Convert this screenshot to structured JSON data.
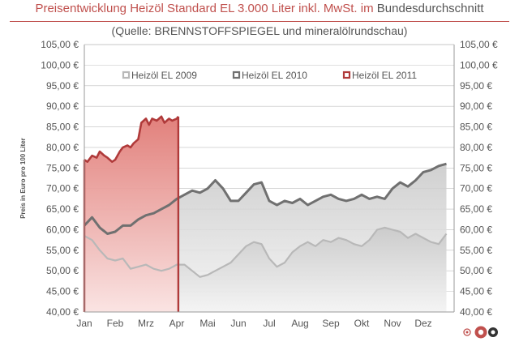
{
  "header": {
    "title_main": "Preisentwicklung Heizöl Standard EL 3.000 Liter inkl. MwSt. im",
    "title_tail": "Bundesdurchschnitt",
    "subtitle": "(Quelle: BRENNSTOFFSPIEGEL  und mineralölrundschau)"
  },
  "colors": {
    "accent": "#c0504d",
    "series_2011": "#b03a3a",
    "series_2010": "#707070",
    "series_2009": "#b8b8b8",
    "grid": "#bfbfbf",
    "text": "#555555"
  },
  "chart_data": {
    "type": "area",
    "ylabel": "Preis in Euro pro 100 Liter",
    "ylim": [
      40,
      105
    ],
    "y_ticks": [
      "40,00 €",
      "45,00 €",
      "50,00 €",
      "55,00 €",
      "60,00 €",
      "65,00 €",
      "70,00 €",
      "75,00 €",
      "80,00 €",
      "85,00 €",
      "90,00 €",
      "95,00 €",
      "100,00 €",
      "105,00 €"
    ],
    "y_tick_values": [
      40,
      45,
      50,
      55,
      60,
      65,
      70,
      75,
      80,
      85,
      90,
      95,
      100,
      105
    ],
    "categories": [
      "Jan",
      "Feb",
      "Mrz",
      "Apr",
      "Mai",
      "Jun",
      "Jul",
      "Aug",
      "Sep",
      "Okt",
      "Nov",
      "Dez"
    ],
    "legend_position": "top",
    "grid": true,
    "series": [
      {
        "name": "Heizöl EL 2009",
        "x": [
          0,
          0.25,
          0.5,
          0.75,
          1,
          1.25,
          1.5,
          1.75,
          2,
          2.25,
          2.5,
          2.75,
          3,
          3.25,
          3.5,
          3.75,
          4,
          4.25,
          4.5,
          4.75,
          5,
          5.25,
          5.5,
          5.75,
          6,
          6.25,
          6.5,
          6.75,
          7,
          7.25,
          7.5,
          7.75,
          8,
          8.25,
          8.5,
          8.75,
          9,
          9.25,
          9.5,
          9.75,
          10,
          10.25,
          10.5,
          10.75,
          11,
          11.25,
          11.5,
          11.75
        ],
        "values": [
          58.5,
          57.5,
          55,
          53,
          52.5,
          53,
          50.5,
          51,
          51.5,
          50.5,
          50,
          50.5,
          51.5,
          51.5,
          50,
          48.5,
          49,
          50,
          51,
          52,
          54,
          56,
          57,
          56.5,
          53,
          51,
          52,
          54.5,
          56,
          57,
          56,
          57.5,
          57,
          58,
          57.5,
          56.5,
          56,
          57.5,
          60,
          60.5,
          60,
          59.5,
          58,
          59,
          58,
          57,
          56.5,
          59
        ]
      },
      {
        "name": "Heizöl EL 2010",
        "x": [
          0,
          0.25,
          0.5,
          0.75,
          1,
          1.25,
          1.5,
          1.75,
          2,
          2.25,
          2.5,
          2.75,
          3,
          3.25,
          3.5,
          3.75,
          4,
          4.25,
          4.5,
          4.75,
          5,
          5.25,
          5.5,
          5.75,
          6,
          6.25,
          6.5,
          6.75,
          7,
          7.25,
          7.5,
          7.75,
          8,
          8.25,
          8.5,
          8.75,
          9,
          9.25,
          9.5,
          9.75,
          10,
          10.25,
          10.5,
          10.75,
          11,
          11.25,
          11.5,
          11.75
        ],
        "values": [
          61,
          63,
          60.5,
          59,
          59.5,
          61,
          61,
          62.5,
          63.5,
          64,
          65,
          66,
          67.5,
          68.5,
          69.5,
          69,
          70,
          72,
          70,
          67,
          67,
          69,
          71,
          71.5,
          67,
          66,
          67,
          66.5,
          67.5,
          66,
          67,
          68,
          68.5,
          67.5,
          67,
          67.5,
          68.5,
          67.5,
          68,
          67.5,
          70,
          71.5,
          70.5,
          72,
          74,
          74.5,
          75.5,
          76
        ]
      },
      {
        "name": "Heizöl EL 2011",
        "x": [
          0,
          0.1,
          0.25,
          0.4,
          0.5,
          0.65,
          0.75,
          0.9,
          1,
          1.15,
          1.25,
          1.4,
          1.5,
          1.6,
          1.75,
          1.85,
          2,
          2.1,
          2.2,
          2.35,
          2.5,
          2.6,
          2.75,
          2.85,
          3,
          3.05
        ],
        "values": [
          77,
          76.5,
          78,
          77.5,
          79,
          78,
          77.5,
          76.5,
          77,
          79,
          80,
          80.5,
          80,
          81,
          82,
          86,
          87,
          85.5,
          87,
          86.5,
          87.5,
          86,
          87,
          86.5,
          87,
          87.5
        ]
      }
    ]
  }
}
